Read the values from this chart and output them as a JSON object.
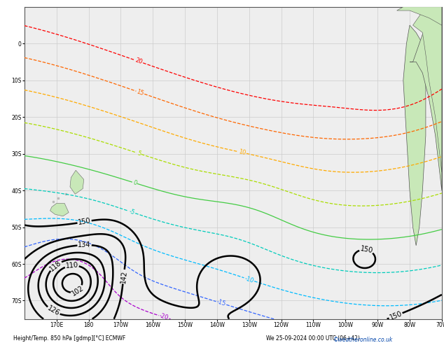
{
  "title": "Height/Temp. 850 hPa [gdmp][°C] ECMWF",
  "subtitle": "We 25-09-2024 00:00 UTC (06+42)",
  "copyright": "©weatheronline.co.uk",
  "bg_color": "#ffffff",
  "plot_bg": "#eeeeee",
  "grid_color": "#cccccc",
  "figsize": [
    6.34,
    4.9
  ],
  "dpi": 100,
  "xlim": [
    160,
    290
  ],
  "ylim": [
    -75,
    10
  ],
  "xlabel_ticks": [
    170,
    180,
    190,
    200,
    210,
    220,
    230,
    240,
    250,
    260,
    270,
    280,
    290
  ],
  "xlabel_labels": [
    "170E",
    "180",
    "170W",
    "160W",
    "150W",
    "140W",
    "130W",
    "120W",
    "110W",
    "100W",
    "90W",
    "80W",
    "70W"
  ],
  "ylabel_ticks": [
    -70,
    -60,
    -50,
    -40,
    -30,
    -20,
    -10,
    0
  ],
  "ylabel_labels": [
    "70S",
    "60S",
    "50S",
    "40S",
    "30S",
    "20S",
    "10S",
    "0"
  ],
  "height_contour_color": "#000000",
  "height_contour_levels": [
    94,
    102,
    110,
    118,
    126,
    134,
    142,
    150
  ],
  "temp_colors": {
    "-20": "#aa00cc",
    "-15": "#3366ff",
    "-10": "#00bbff",
    "-5": "#00ccbb",
    "0": "#44cc44",
    "5": "#aadd00",
    "10": "#ffaa00",
    "15": "#ff6600",
    "20": "#ff0000"
  },
  "land_color": "#c8e8b8",
  "land_gray": "#bbbbbb",
  "footer_color": "#000000",
  "watermark_color": "#0044aa"
}
